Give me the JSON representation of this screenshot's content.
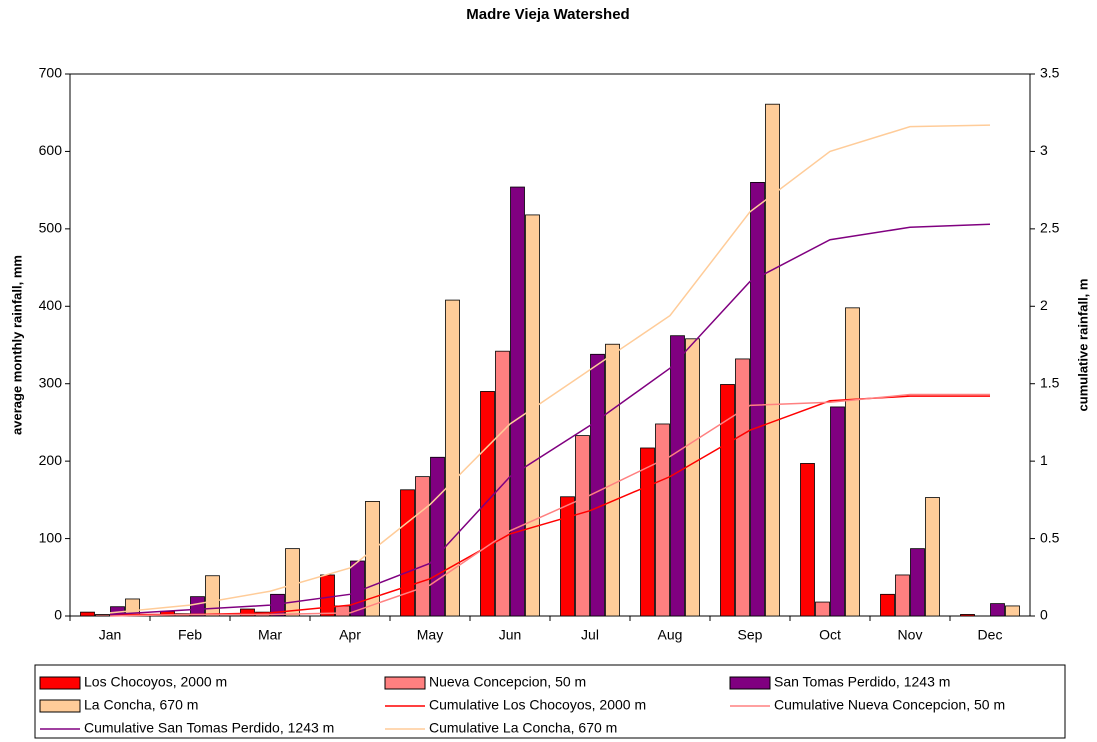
{
  "chart_data": {
    "type": "bar",
    "title": "Madre Vieja Watershed",
    "y_label": "average monthly rainfall, mm",
    "y2_label": "cumulative rainfall, m",
    "categories": [
      "Jan",
      "Feb",
      "Mar",
      "Apr",
      "May",
      "Jun",
      "Jul",
      "Aug",
      "Sep",
      "Oct",
      "Nov",
      "Dec"
    ],
    "ylim": [
      0,
      700
    ],
    "yticks": [
      0,
      100,
      200,
      300,
      400,
      500,
      600,
      700
    ],
    "y2lim": [
      0,
      3.5
    ],
    "y2ticks": [
      0,
      0.5,
      1,
      1.5,
      2,
      2.5,
      3,
      3.5
    ],
    "legend": "bottom",
    "series": [
      {
        "name": "Los Chocoyos, 2000 m",
        "type": "bar",
        "color": "#ff0000",
        "values": [
          5,
          6,
          9,
          53,
          163,
          290,
          154,
          217,
          299,
          197,
          28,
          2
        ]
      },
      {
        "name": "Nueva Concepcion, 50 m",
        "type": "bar",
        "color": "#ff8080",
        "values": [
          2,
          3,
          5,
          13,
          180,
          342,
          233,
          248,
          332,
          18,
          53,
          0
        ]
      },
      {
        "name": "San Tomas Perdido, 1243 m",
        "type": "bar",
        "color": "#800080",
        "values": [
          12,
          25,
          28,
          71,
          205,
          554,
          338,
          362,
          560,
          270,
          87,
          16
        ]
      },
      {
        "name": "La Concha, 670 m",
        "type": "bar",
        "color": "#ffcc99",
        "values": [
          22,
          52,
          87,
          148,
          408,
          518,
          351,
          358,
          661,
          398,
          153,
          13
        ]
      },
      {
        "name": "Cumulative Los Chocoyos, 2000 m",
        "type": "line",
        "axis": "y2",
        "color": "#ff0000",
        "values": [
          0.01,
          0.01,
          0.02,
          0.07,
          0.24,
          0.53,
          0.68,
          0.9,
          1.2,
          1.39,
          1.42,
          1.42
        ]
      },
      {
        "name": "Cumulative Nueva Concepcion, 50 m",
        "type": "line",
        "axis": "y2",
        "color": "#ff8080",
        "values": [
          0,
          0.01,
          0.01,
          0.02,
          0.2,
          0.55,
          0.78,
          1.03,
          1.36,
          1.38,
          1.43,
          1.43
        ]
      },
      {
        "name": "Cumulative San Tomas Perdido, 1243 m",
        "type": "line",
        "axis": "y2",
        "color": "#800080",
        "values": [
          0.01,
          0.04,
          0.07,
          0.14,
          0.34,
          0.9,
          1.23,
          1.6,
          2.16,
          2.43,
          2.51,
          2.53
        ]
      },
      {
        "name": "Cumulative La Concha, 670 m",
        "type": "line",
        "axis": "y2",
        "color": "#ffcc99",
        "values": [
          0.02,
          0.07,
          0.16,
          0.31,
          0.72,
          1.24,
          1.59,
          1.94,
          2.61,
          3.0,
          3.16,
          3.17
        ]
      }
    ]
  }
}
